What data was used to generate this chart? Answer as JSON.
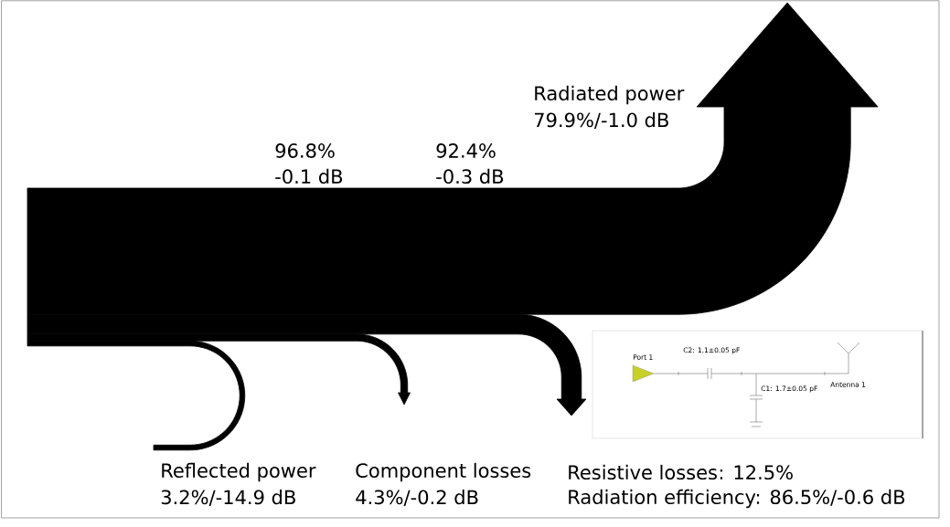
{
  "chart_data": {
    "type": "other",
    "categories": [
      "Reflected power",
      "Component losses",
      "Resistive losses",
      "Radiated power"
    ],
    "values": [
      3.2,
      4.3,
      12.5,
      79.9
    ],
    "value_labels": [
      "3.2%/-14.9 dB",
      "4.3%/-0.2 dB",
      ": 12.5%",
      "79.9%/-1.0 dB"
    ],
    "color": "#000000",
    "annotations": [
      "96.8%",
      "-0.1 dB",
      "92.4%",
      "-0.3 dB",
      "Radiation efficiency: 86.5%/-0.6 dB",
      "Port 1",
      "C2: 1.1±0.05 pF",
      "C1: 1.7±0.05 pF",
      "Antenna 1"
    ]
  }
}
